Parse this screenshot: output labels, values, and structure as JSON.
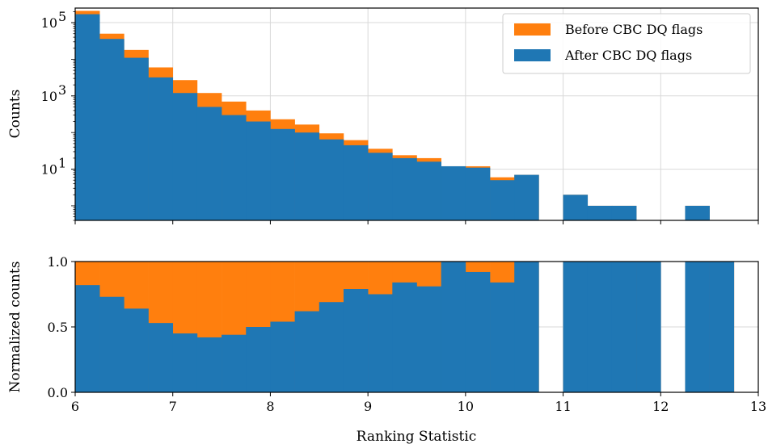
{
  "colors": {
    "before": "#ff7f0e",
    "after": "#1f77b4",
    "grid": "#d9d9d9"
  },
  "legend": {
    "before_label": "Before CBC DQ flags",
    "after_label": "After CBC DQ flags"
  },
  "chart_data": [
    {
      "type": "bar",
      "title": "",
      "ylabel": "Counts",
      "yscale": "log",
      "ylim": [
        0.4,
        250000
      ],
      "xlim": [
        6,
        13
      ],
      "legend_position": "top-right",
      "grid": true,
      "ytick_labels": [
        "10",
        "10",
        "10"
      ],
      "ytick_exponents": [
        "5",
        "3",
        "1"
      ],
      "ytick_values": [
        100000,
        1000,
        10
      ],
      "bin_edges": [
        6.0,
        6.25,
        6.5,
        6.75,
        7.0,
        7.25,
        7.5,
        7.75,
        8.0,
        8.25,
        8.5,
        8.75,
        9.0,
        9.25,
        9.5,
        9.75,
        10.0,
        10.25,
        10.5,
        10.75,
        11.0,
        11.25,
        11.5,
        11.75,
        12.0,
        12.25,
        12.5,
        12.75
      ],
      "series": [
        {
          "name": "Before CBC DQ flags",
          "values": [
            210000,
            50000,
            18000,
            6000,
            2700,
            1200,
            700,
            400,
            230,
            165,
            95,
            62,
            36,
            24,
            20,
            12,
            12,
            6,
            7,
            0,
            2,
            1,
            1,
            0,
            0,
            1,
            0
          ]
        },
        {
          "name": "After CBC DQ flags",
          "values": [
            170000,
            36000,
            11000,
            3200,
            1200,
            500,
            300,
            200,
            125,
            100,
            65,
            45,
            28,
            20,
            16,
            12,
            11,
            5,
            7,
            0,
            2,
            1,
            1,
            0,
            0,
            1,
            0
          ]
        }
      ]
    },
    {
      "type": "bar",
      "title": "",
      "ylabel": "Normalized counts",
      "xlabel": "Ranking Statistic",
      "ylim": [
        0,
        1.0
      ],
      "xlim": [
        6,
        13
      ],
      "grid": true,
      "ytick_labels": [
        "0.0",
        "0.5",
        "1.0"
      ],
      "ytick_values": [
        0,
        0.5,
        1.0
      ],
      "xtick_labels": [
        "6",
        "7",
        "8",
        "9",
        "10",
        "11",
        "12",
        "13"
      ],
      "xtick_values": [
        6,
        7,
        8,
        9,
        10,
        11,
        12,
        13
      ],
      "bin_edges": [
        6.0,
        6.25,
        6.5,
        6.75,
        7.0,
        7.25,
        7.5,
        7.75,
        8.0,
        8.25,
        8.5,
        8.75,
        9.0,
        9.25,
        9.5,
        9.75,
        10.0,
        10.25,
        10.5,
        10.75,
        11.0,
        11.25,
        11.5,
        11.75,
        12.0,
        12.25,
        12.5,
        12.75
      ],
      "series": [
        {
          "name": "Before CBC DQ flags",
          "values": [
            1,
            1,
            1,
            1,
            1,
            1,
            1,
            1,
            1,
            1,
            1,
            1,
            1,
            1,
            1,
            1,
            1,
            1,
            1,
            0,
            1,
            1,
            1,
            1,
            0,
            1,
            1
          ]
        },
        {
          "name": "After CBC DQ flags",
          "values": [
            0.82,
            0.73,
            0.64,
            0.53,
            0.45,
            0.42,
            0.44,
            0.5,
            0.54,
            0.62,
            0.69,
            0.79,
            0.75,
            0.84,
            0.81,
            1.0,
            0.92,
            0.84,
            1.0,
            0,
            1,
            1,
            1,
            1,
            0,
            1,
            1
          ]
        }
      ]
    }
  ]
}
